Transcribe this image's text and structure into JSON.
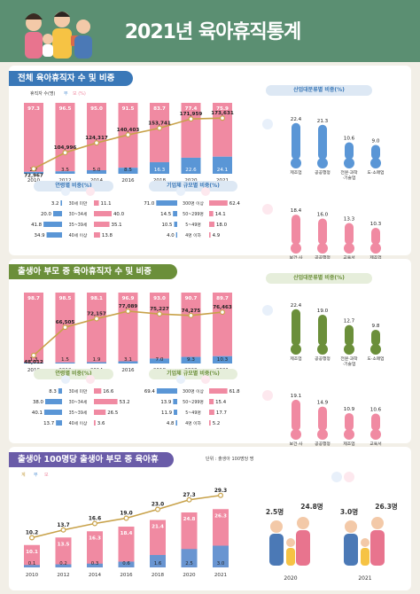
{
  "title": "2021년 육아휴직통계",
  "section1": {
    "title": "전체 육아휴직자 수 및 비중",
    "legend": [
      "휴직자 수(명)",
      "부",
      "모 (%)"
    ],
    "industry_title": "산업대분류별 비중(%)",
    "age_title": "연령별 비중(%)",
    "size_title": "기업체 규모별 비중(%)"
  },
  "section2": {
    "title": "출생아 부모 중 육아휴직자 수 및 비중",
    "industry_title": "산업대분류별 비중(%)",
    "age_title": "연령별 비중(%)",
    "size_title": "기업체 규모별 비중(%)"
  },
  "section3": {
    "title": "출생아 100명당 출생아 부모 중 육아휴직자 수",
    "unit": "단위 : 출생아 100명당 명",
    "legend": [
      "계",
      "부",
      "모"
    ],
    "people_years": [
      "2020",
      "2021"
    ]
  },
  "chart_data": [
    {
      "type": "bar",
      "name": "전체 육아휴직자 수 및 비중",
      "categories": [
        "2010",
        "2012",
        "2014",
        "2016",
        "2018",
        "2020",
        "2021"
      ],
      "series": [
        {
          "name": "부",
          "values": [
            2.7,
            3.5,
            5.0,
            8.5,
            16.3,
            22.6,
            24.1
          ]
        },
        {
          "name": "모",
          "values": [
            97.3,
            96.5,
            95.0,
            91.5,
            83.7,
            77.4,
            75.9
          ]
        },
        {
          "name": "휴직자 수(명)",
          "values": [
            72967,
            104996,
            124317,
            140403,
            153741,
            171959,
            173631
          ]
        }
      ],
      "value_labels": {
        "father": [
          "2.7",
          "3.5",
          "5.0",
          "8.5",
          "16.3",
          "22.6",
          "24.1"
        ],
        "mother": [
          "97.3",
          "96.5",
          "95.0",
          "91.5",
          "83.7",
          "77.4",
          "75.9"
        ],
        "total": [
          "72,967",
          "104,996",
          "124,317",
          "140,403",
          "153,741",
          "171,959",
          "173,631"
        ]
      }
    },
    {
      "type": "bar",
      "name": "산업대분류별 비중 (전체)",
      "father": {
        "categories": [
          "제조업",
          "공공행정",
          "전문·과학·기술업",
          "도·소매업"
        ],
        "values": [
          22.4,
          21.3,
          10.6,
          9.0
        ],
        "labels": [
          "22.4",
          "21.3",
          "10.6",
          "9.0"
        ]
      },
      "mother": {
        "categories": [
          "보건·사회복지업",
          "공공행정",
          "교육서비스업",
          "제조업"
        ],
        "values": [
          18.4,
          16.0,
          13.3,
          10.3
        ],
        "labels": [
          "18.4",
          "16.0",
          "13.3",
          "10.3"
        ]
      }
    },
    {
      "type": "bar",
      "name": "연령별 비중 (전체)",
      "categories": [
        "30세 미만",
        "30~34세",
        "35~39세",
        "40세 이상"
      ],
      "series": [
        {
          "name": "부",
          "values": [
            3.2,
            20.0,
            41.8,
            34.9
          ],
          "labels": [
            "3.2",
            "20.0",
            "41.8",
            "34.9"
          ]
        },
        {
          "name": "모",
          "values": [
            11.1,
            40.0,
            35.1,
            13.8
          ],
          "labels": [
            "11.1",
            "40.0",
            "35.1",
            "13.8"
          ]
        }
      ]
    },
    {
      "type": "bar",
      "name": "기업체 규모별 비중 (전체)",
      "categories": [
        "300명 이상",
        "50~299명",
        "5~49명",
        "4명 이하"
      ],
      "series": [
        {
          "name": "부",
          "values": [
            71.0,
            14.5,
            10.5,
            4.0
          ],
          "labels": [
            "71.0",
            "14.5",
            "10.5",
            "4.0"
          ]
        },
        {
          "name": "모",
          "values": [
            62.4,
            14.1,
            18.0,
            4.9
          ],
          "labels": [
            "62.4",
            "14.1",
            "18.0",
            "4.9"
          ]
        }
      ]
    },
    {
      "type": "bar",
      "name": "출생아 부모 중 육아휴직자 수 및 비중",
      "categories": [
        "2010",
        "2012",
        "2014",
        "2016",
        "2018",
        "2020",
        "2021"
      ],
      "series": [
        {
          "name": "부",
          "values": [
            1.3,
            1.5,
            1.9,
            3.1,
            7.0,
            9.3,
            10.3
          ]
        },
        {
          "name": "모",
          "values": [
            98.7,
            98.5,
            98.1,
            96.9,
            93.0,
            90.7,
            89.7
          ]
        },
        {
          "name": "휴직자 수(명)",
          "values": [
            48012,
            66505,
            72157,
            77089,
            75227,
            74275,
            76463
          ]
        }
      ],
      "value_labels": {
        "father": [
          "1.3",
          "1.5",
          "1.9",
          "3.1",
          "7.0",
          "9.3",
          "10.3"
        ],
        "mother": [
          "98.7",
          "98.5",
          "98.1",
          "96.9",
          "93.0",
          "90.7",
          "89.7"
        ],
        "total": [
          "48,012",
          "66,505",
          "72,157",
          "77,089",
          "75,227",
          "74,275",
          "76,463"
        ]
      }
    },
    {
      "type": "bar",
      "name": "산업대분류별 비중 (출생아 부모)",
      "father": {
        "categories": [
          "제조업",
          "공공행정",
          "전문·과학·기술업",
          "도·소매업"
        ],
        "values": [
          22.4,
          19.0,
          12.7,
          9.8
        ],
        "labels": [
          "22.4",
          "19.0",
          "12.7",
          "9.8"
        ]
      },
      "mother": {
        "categories": [
          "보건·사회복지업",
          "공공행정",
          "제조업",
          "교육서비스업"
        ],
        "values": [
          19.1,
          14.9,
          10.9,
          10.6
        ],
        "labels": [
          "19.1",
          "14.9",
          "10.9",
          "10.6"
        ]
      }
    },
    {
      "type": "bar",
      "name": "연령별 비중 (출생아 부모)",
      "categories": [
        "30세 미만",
        "30~34세",
        "35~39세",
        "40세 이상"
      ],
      "series": [
        {
          "name": "부",
          "values": [
            8.3,
            38.0,
            40.1,
            13.7
          ],
          "labels": [
            "8.3",
            "38.0",
            "40.1",
            "13.7"
          ]
        },
        {
          "name": "모",
          "values": [
            16.6,
            53.2,
            26.5,
            3.6
          ],
          "labels": [
            "16.6",
            "53.2",
            "26.5",
            "3.6"
          ]
        }
      ]
    },
    {
      "type": "bar",
      "name": "기업체 규모별 비중 (출생아 부모)",
      "categories": [
        "300명 이상",
        "50~299명",
        "5~49명",
        "4명 이하"
      ],
      "series": [
        {
          "name": "부",
          "values": [
            69.4,
            13.9,
            11.9,
            4.8
          ],
          "labels": [
            "69.4",
            "13.9",
            "11.9",
            "4.8"
          ]
        },
        {
          "name": "모",
          "values": [
            61.8,
            15.4,
            17.7,
            5.2
          ],
          "labels": [
            "61.8",
            "15.4",
            "17.7",
            "5.2"
          ]
        }
      ]
    },
    {
      "type": "bar",
      "name": "출생아 100명당 출생아 부모 중 육아휴직자 수",
      "categories": [
        "2010",
        "2012",
        "2014",
        "2016",
        "2018",
        "2020",
        "2021"
      ],
      "series": [
        {
          "name": "계",
          "values": [
            10.2,
            13.7,
            16.6,
            19.0,
            23.0,
            27.3,
            29.3
          ]
        },
        {
          "name": "부",
          "values": [
            0.1,
            0.2,
            0.3,
            0.6,
            1.6,
            2.5,
            3.0
          ]
        },
        {
          "name": "모",
          "values": [
            10.1,
            13.5,
            16.3,
            18.4,
            21.4,
            24.8,
            26.3
          ]
        }
      ],
      "value_labels": {
        "total": [
          "10.2",
          "13.7",
          "16.6",
          "19.0",
          "23.0",
          "27.3",
          "29.3"
        ],
        "father": [
          "0.1",
          "0.2",
          "0.3",
          "0.6",
          "1.6",
          "2.5",
          "3.0"
        ],
        "mother": [
          "10.1",
          "13.5",
          "16.3",
          "18.4",
          "21.4",
          "24.8",
          "26.3"
        ]
      },
      "callouts": {
        "2020": {
          "father": "2.5",
          "mother": "24.8"
        },
        "2021": {
          "father": "3.0",
          "mother": "26.3"
        },
        "unit": "명"
      }
    }
  ],
  "colors": {
    "header": "#5b8f72",
    "section_blue": "#3a78b8",
    "section_green": "#6b8f3a",
    "section_purple": "#6a5ca8",
    "father": "#5a96d6",
    "mother": "#f08aa2",
    "line": "#c8a24a"
  }
}
